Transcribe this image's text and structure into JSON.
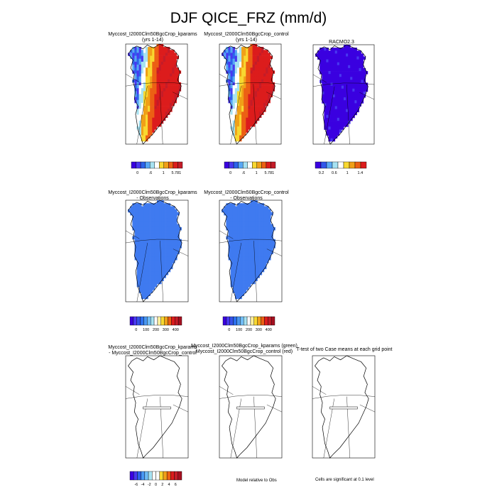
{
  "page": {
    "title": "DJF QICE_FRZ (mm/d)"
  },
  "chart_data": [
    {
      "type": "heatmap",
      "title": "Myccost_I2000Clm50BgcCrop_kparams",
      "subtitle": "(yrs 1-14)",
      "colorbar": {
        "tick_labels": [
          "0",
          ".6",
          "1",
          "5.781"
        ],
        "colors": [
          "#3a00e0",
          "#4838f0",
          "#2c62ea",
          "#56a7f5",
          "#a6e2f2",
          "#ffffff",
          "#f8d830",
          "#f0a018",
          "#ec6014",
          "#dc1c1c",
          "#c41c28"
        ]
      }
    },
    {
      "type": "heatmap",
      "title": "Myccost_I2000Clm50BgcCrop_control",
      "subtitle": "(yrs 1-14)",
      "colorbar": {
        "tick_labels": [
          "0",
          ".6",
          "1",
          "5.781"
        ],
        "colors": [
          "#3a00e0",
          "#4838f0",
          "#2c62ea",
          "#56a7f5",
          "#a6e2f2",
          "#ffffff",
          "#f8d830",
          "#f0a018",
          "#ec6014",
          "#dc1c1c",
          "#c41c28"
        ]
      }
    },
    {
      "type": "heatmap",
      "title": "RACMO2.3",
      "subtitle": "",
      "colorbar": {
        "tick_labels": [
          "0.2",
          "0.6",
          "1",
          "1.4"
        ],
        "colors": [
          "#3a00e0",
          "#3256ea",
          "#5aa8f4",
          "#a6e2f2",
          "#ffffff",
          "#f8d830",
          "#f0a018",
          "#ec6014",
          "#dc1c1c"
        ]
      }
    },
    {
      "type": "heatmap",
      "title": "Myccost_I2000Clm50BgcCrop_kparams",
      "subtitle": "- Observations",
      "colorbar": {
        "tick_labels": [
          "0",
          "100",
          "200",
          "300",
          "400"
        ],
        "colors": [
          "#3a00e0",
          "#4838f0",
          "#3552ea",
          "#2c70ee",
          "#4896f2",
          "#70bcf5",
          "#a6e2f2",
          "#ffffff",
          "#fff1a0",
          "#f8d830",
          "#f0a018",
          "#ec6014",
          "#dc1c1c",
          "#c41c28",
          "#a61020"
        ]
      }
    },
    {
      "type": "heatmap",
      "title": "Myccost_I2000Clm50BgcCrop_control",
      "subtitle": "- Observations",
      "colorbar": {
        "tick_labels": [
          "0",
          "100",
          "200",
          "300",
          "400"
        ],
        "colors": [
          "#3a00e0",
          "#4838f0",
          "#3552ea",
          "#2c70ee",
          "#4896f2",
          "#70bcf5",
          "#a6e2f2",
          "#ffffff",
          "#fff1a0",
          "#f8d830",
          "#f0a018",
          "#ec6014",
          "#dc1c1c",
          "#c41c28",
          "#a61020"
        ]
      }
    },
    {
      "type": "heatmap",
      "title": "Myccost_I2000Clm50BgcCrop_kparams",
      "subtitle": "- Myccost_I2000Clm50BgcCrop_control",
      "colorbar": {
        "tick_labels": [
          "-6",
          "-4",
          "-2",
          "0",
          "2",
          "4",
          "6"
        ],
        "colors": [
          "#3a00e0",
          "#4838f0",
          "#2c62ea",
          "#4896f2",
          "#70bcf5",
          "#a6e2f2",
          "#ffffff",
          "#ffffff",
          "#f8d830",
          "#f0a018",
          "#ec6014",
          "#dc1c1c",
          "#c41c28",
          "#a61020"
        ]
      }
    },
    {
      "type": "heatmap",
      "title": "Myccost_I2000Clm50BgcCrop_kparams (green)",
      "subtitle": "Myccost_I2000Clm50BgcCrop_control (red)",
      "note": "Model relative to Obs"
    },
    {
      "type": "heatmap",
      "title": "T-test of two Case means at each grid point",
      "subtitle": "",
      "note": "Cells are significant at 0.1 level"
    }
  ]
}
